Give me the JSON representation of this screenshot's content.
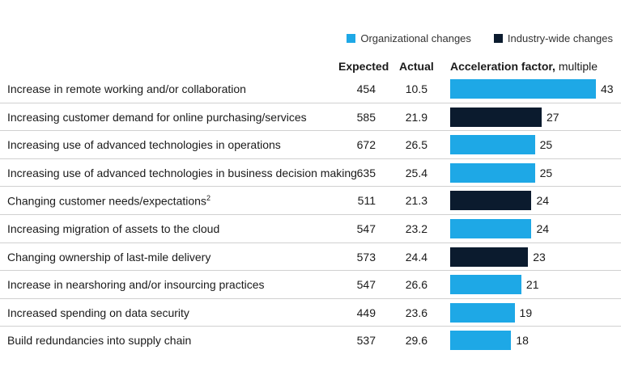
{
  "legend": {
    "organizational": {
      "label": "Organizational changes",
      "color": "#1ea8e6"
    },
    "industry": {
      "label": "Industry-wide changes",
      "color": "#0b1b2e"
    }
  },
  "headers": {
    "expected": "Expected",
    "actual": "Actual",
    "acceleration_bold": "Acceleration factor,",
    "acceleration_rest": " multiple"
  },
  "chart_data": {
    "type": "bar",
    "orientation": "horizontal",
    "xlim": [
      0,
      43
    ],
    "categories": [
      "Increase in remote working and/or collaboration",
      "Increasing customer demand for online purchasing/services",
      "Increasing use of advanced technologies in operations",
      "Increasing use of advanced technologies in business decision making",
      "Changing customer needs/expectations",
      "Increasing migration of assets to the cloud",
      "Changing ownership of last-mile delivery",
      "Increase in nearshoring and/or insourcing practices",
      "Increased spending on data security",
      "Build redundancies into supply chain"
    ],
    "footnote_marks": [
      "",
      "",
      "",
      "",
      "2",
      "",
      "",
      "",
      "",
      ""
    ],
    "expected": [
      "454",
      "585",
      "672",
      "635",
      "511",
      "547",
      "573",
      "547",
      "449",
      "537"
    ],
    "actual": [
      "10.5",
      "21.9",
      "26.5",
      "25.4",
      "21.3",
      "23.2",
      "24.4",
      "26.6",
      "23.6",
      "29.6"
    ],
    "values": [
      43,
      27,
      25,
      25,
      24,
      24,
      23,
      21,
      19,
      18
    ],
    "groups": [
      "organizational",
      "industry",
      "organizational",
      "organizational",
      "industry",
      "organizational",
      "industry",
      "organizational",
      "organizational",
      "organizational"
    ]
  }
}
